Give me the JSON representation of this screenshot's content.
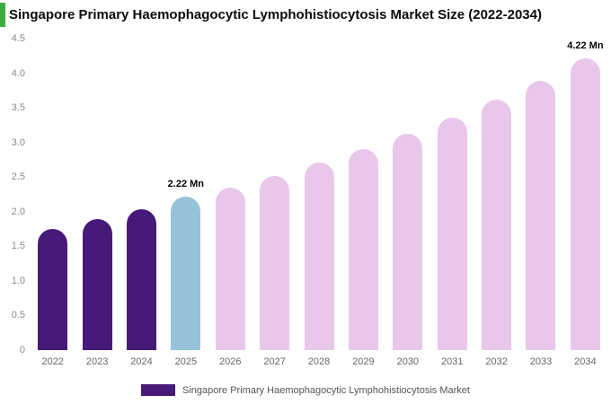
{
  "accent_color": "#3cae3f",
  "title": "Singapore Primary Haemophagocytic Lymphohistiocytosis Market Size (2022-2034)",
  "chart_data": {
    "type": "bar",
    "title": "Singapore Primary Haemophagocytic Lymphohistiocytosis Market Size (2022-2034)",
    "xlabel": "",
    "ylabel": "",
    "ylim": [
      0,
      4.5
    ],
    "yticks": [
      "4.5",
      "4.0",
      "3.5",
      "3.0",
      "2.5",
      "2.0",
      "1.5",
      "1.0",
      "0.5",
      "0"
    ],
    "grid": false,
    "categories": [
      "2022",
      "2023",
      "2024",
      "2025",
      "2026",
      "2027",
      "2028",
      "2029",
      "2030",
      "2031",
      "2032",
      "2033",
      "2034"
    ],
    "values": [
      1.75,
      1.9,
      2.04,
      2.22,
      2.35,
      2.52,
      2.71,
      2.9,
      3.13,
      3.36,
      3.62,
      3.89,
      4.22
    ],
    "unit": "Mn",
    "bar_colors": [
      "#471979",
      "#471979",
      "#471979",
      "#96c3da",
      "#e8c7ea",
      "#e8c7ea",
      "#e8c7ea",
      "#e8c7ea",
      "#e8c7ea",
      "#e8c7ea",
      "#e8c7ea",
      "#e8c7ea",
      "#e8c7ea"
    ],
    "annotations": [
      {
        "index": 3,
        "text": "2.22 Mn"
      },
      {
        "index": 12,
        "text": "4.22 Mn"
      }
    ],
    "legend": {
      "position": "bottom",
      "swatch_color": "#471979",
      "label": "Singapore Primary Haemophagocytic Lymphohistiocytosis Market"
    }
  }
}
